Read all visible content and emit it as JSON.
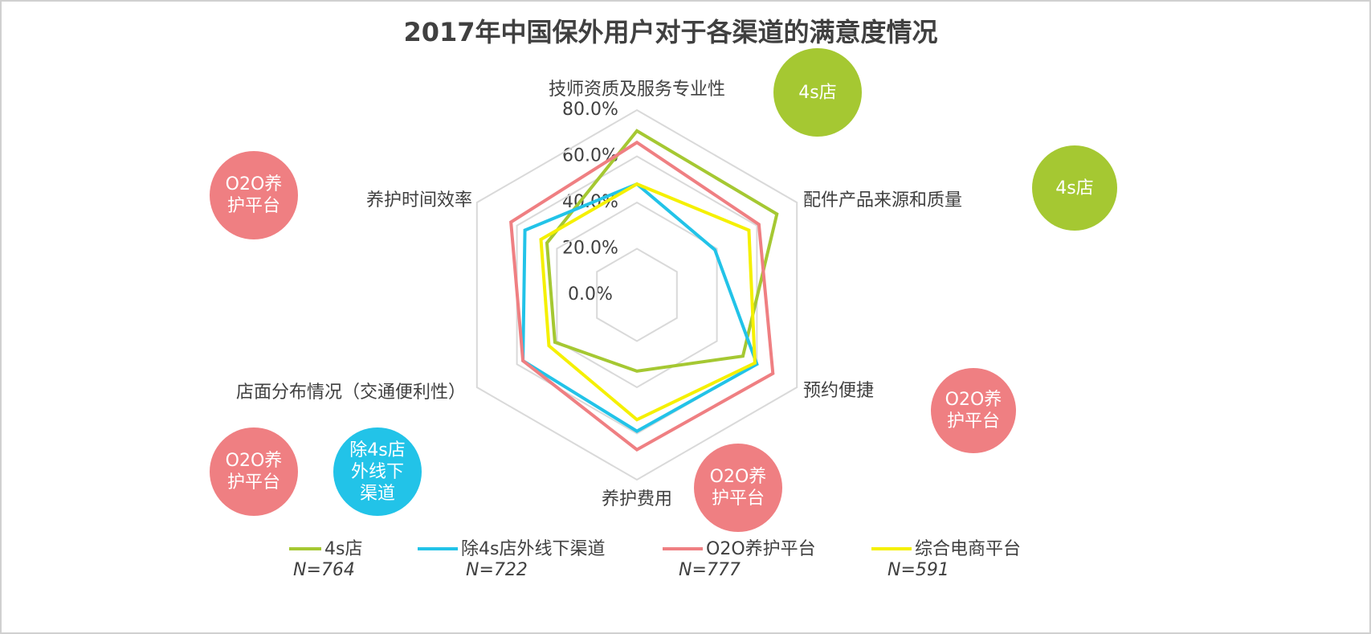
{
  "chart_data": {
    "type": "radar",
    "title": "2017年中国保外用户对于各渠道的满意度情况",
    "categories": [
      "技师资质及服务专业性",
      "配件产品来源和质量",
      "预约便捷",
      "养护费用",
      "店面分布情况（交通便利性）",
      "养护时间效率"
    ],
    "ylim": [
      0,
      80
    ],
    "yticks": [
      {
        "value": 0,
        "label": "0.0%"
      },
      {
        "value": 20,
        "label": "20.0%"
      },
      {
        "value": 40,
        "label": "40.0%"
      },
      {
        "value": 60,
        "label": "60.0%"
      },
      {
        "value": 80,
        "label": "80.0%"
      }
    ],
    "grid": true,
    "series": [
      {
        "name": "4s店",
        "n": "N=764",
        "color": "#a5c832",
        "values": [
          71,
          70,
          53,
          33,
          41,
          45
        ]
      },
      {
        "name": "除4s店外线下渠道",
        "n": "N=722",
        "color": "#22c3e8",
        "values": [
          48,
          39,
          60,
          59,
          57,
          56
        ]
      },
      {
        "name": "O2O养护平台",
        "n": "N=777",
        "color": "#ef7f82",
        "values": [
          66,
          61,
          68,
          67,
          57,
          63
        ]
      },
      {
        "name": "综合电商平台",
        "n": "N=591",
        "color": "#f5f000",
        "values": [
          48,
          56,
          59,
          54,
          44,
          48
        ]
      }
    ],
    "annotations": [
      {
        "text": "4s店",
        "color": "#a5c832"
      },
      {
        "text": "4s店",
        "color": "#a5c832"
      },
      {
        "text": "O2O养护平台",
        "color": "#ef7f82"
      },
      {
        "text": "O2O养护平台",
        "color": "#ef7f82"
      },
      {
        "text": "O2O养护平台",
        "color": "#ef7f82"
      },
      {
        "text": "O2O养护平台",
        "color": "#ef7f82"
      },
      {
        "text": "除4s店外线下渠道",
        "color": "#22c3e8"
      }
    ]
  }
}
